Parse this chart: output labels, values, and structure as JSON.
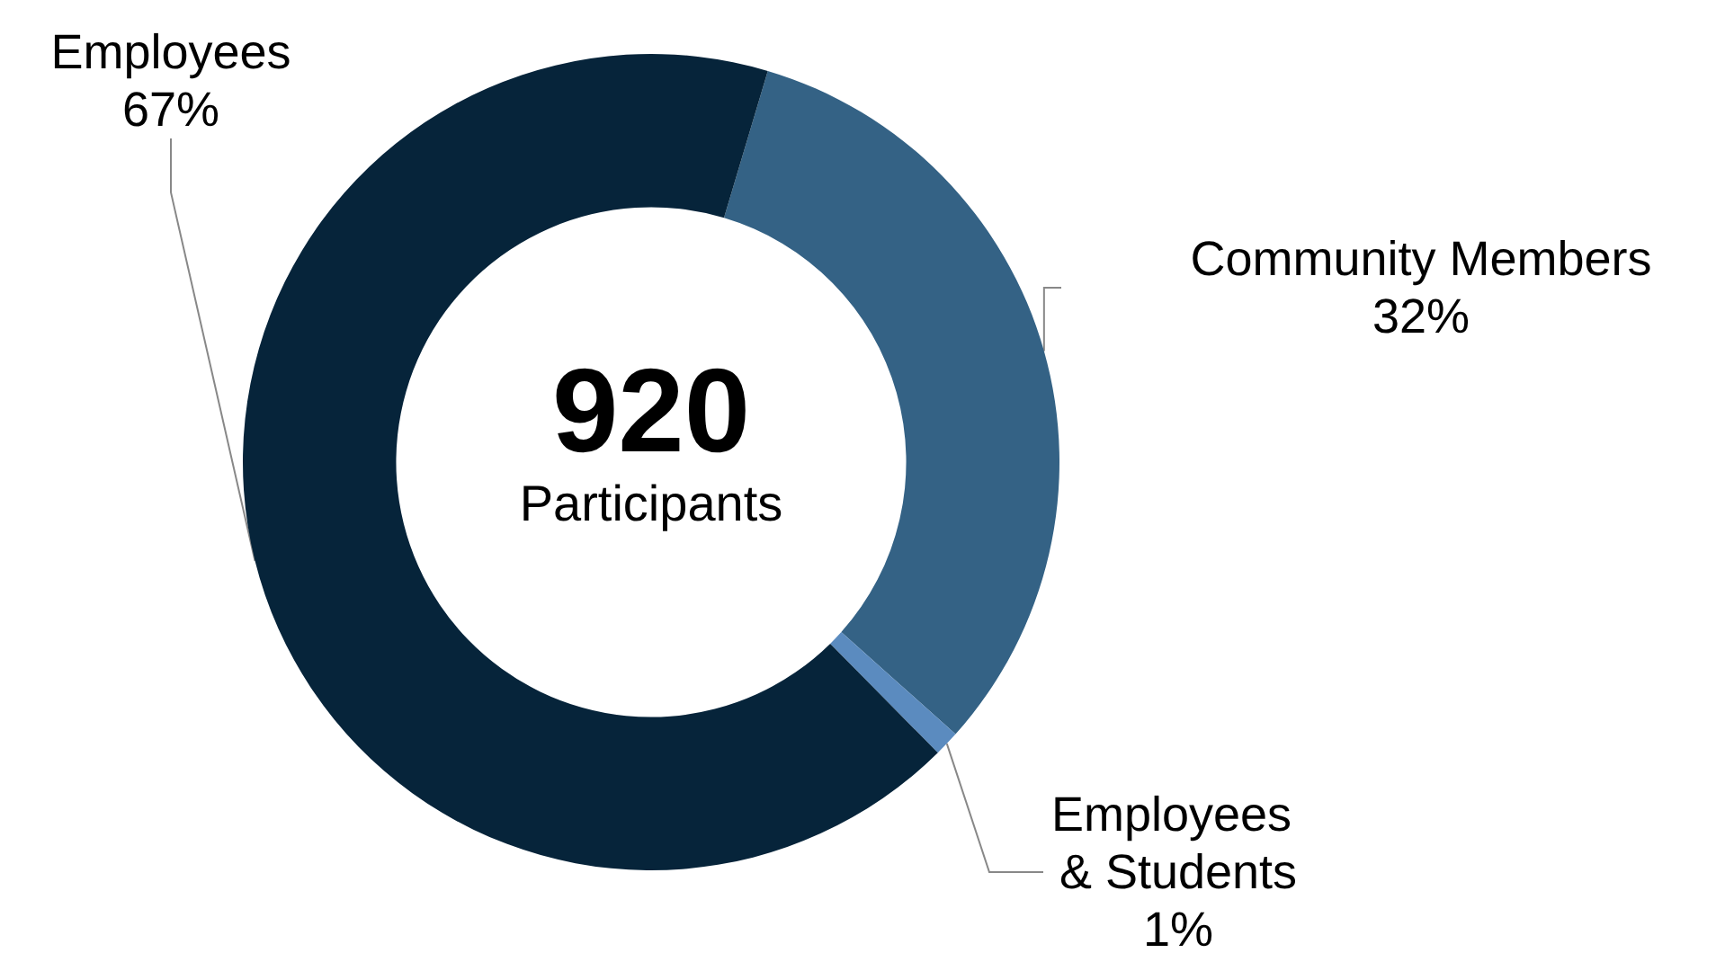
{
  "chart_data": {
    "type": "donut",
    "categories": [
      "Community Members",
      "Employees & Students",
      "Employees"
    ],
    "values": [
      32,
      1,
      67
    ],
    "colors": [
      "#346285",
      "#5b8bbf",
      "#06243a"
    ],
    "annotations": [
      "920",
      "Participants"
    ],
    "value_labels": [
      "32%",
      "1%",
      "67%"
    ],
    "legend": false
  }
}
